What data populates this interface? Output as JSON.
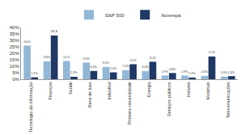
{
  "chart_data": {
    "type": "bar",
    "categories": [
      "Tecnologia da informação",
      "Finanças",
      "Saúde",
      "Bens de luxo",
      "Industrial",
      "Primeira necessidade",
      "Energia",
      "Serviços públicos",
      "Imóveis",
      "Materiais",
      "Telecomunicações"
    ],
    "series": [
      {
        "name": "S&P 500",
        "color": "#92b7d6",
        "values": [
          26.0,
          13.8,
          14.1,
          12.9,
          9.5,
          7.0,
          6.3,
          2.9,
          2.9,
          2.6,
          2.0
        ],
        "value_labels": [
          "26,0%",
          "13,8%",
          "14,1%",
          "12,9%",
          "9,5%",
          "7,0%",
          "6,3%",
          "2,9%",
          "2,9%",
          "2,6%",
          "2,0%"
        ]
      },
      {
        "name": "Ibovespa",
        "color": "#1f3864",
        "values": [
          1.5,
          33.8,
          1.9,
          6.4,
          5.3,
          11.6,
          13.5,
          4.8,
          1.3,
          17.6,
          2.4
        ],
        "value_labels": [
          "1,5%",
          "33,8",
          "1,9%",
          "6,4%",
          "5,3%",
          "11,6%",
          "13,5%",
          "4,8%",
          "1,3%",
          "17,6%",
          "2,4%"
        ]
      }
    ],
    "ylim": [
      0,
      40
    ],
    "yticks": [
      {
        "value": 0,
        "label": "0%"
      },
      {
        "value": 5,
        "label": "5%"
      },
      {
        "value": 10,
        "label": "10%"
      },
      {
        "value": 15,
        "label": "15%"
      },
      {
        "value": 20,
        "label": "20%"
      },
      {
        "value": 25,
        "label": "25%"
      },
      {
        "value": 30,
        "label": "30%"
      },
      {
        "value": 35,
        "label": "35%"
      },
      {
        "value": 40,
        "label": "40%"
      }
    ],
    "grid": false,
    "legend": "top",
    "data_labels": true
  }
}
